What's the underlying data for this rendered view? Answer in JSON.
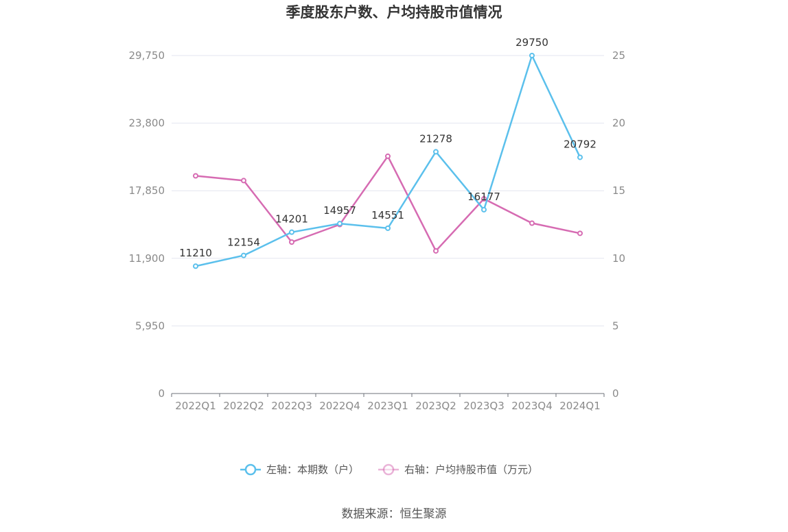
{
  "chart_data": {
    "type": "line",
    "title": "季度股东户数、户均持股市值情况",
    "categories": [
      "2022Q1",
      "2022Q2",
      "2022Q3",
      "2022Q4",
      "2023Q1",
      "2023Q2",
      "2023Q3",
      "2023Q4",
      "2024Q1"
    ],
    "series": [
      {
        "name": "左轴：本期数（户）",
        "axis": "left",
        "color": "#5bc0ec",
        "values": [
          11210,
          12154,
          14201,
          14957,
          14551,
          21278,
          16177,
          29750,
          20792
        ],
        "labels": [
          "11210",
          "12154",
          "14201",
          "14957",
          "14551",
          "21278",
          "16177",
          "29750",
          "20792"
        ]
      },
      {
        "name": "右轴：户均持股市值（万元）",
        "axis": "right",
        "color": "#d66bb2",
        "values": [
          16.1,
          15.75,
          11.2,
          12.5,
          17.55,
          10.55,
          14.4,
          12.6,
          11.85
        ]
      }
    ],
    "y_left": {
      "ylim": [
        0,
        29750
      ],
      "ticks": [
        "0",
        "5,950",
        "11,900",
        "17,850",
        "23,800",
        "29,750"
      ]
    },
    "y_right": {
      "ylim": [
        0,
        25
      ],
      "ticks": [
        "0",
        "5",
        "10",
        "15",
        "20",
        "25"
      ]
    },
    "grid": true,
    "legend_position": "bottom"
  },
  "source": "数据来源：恒生聚源"
}
